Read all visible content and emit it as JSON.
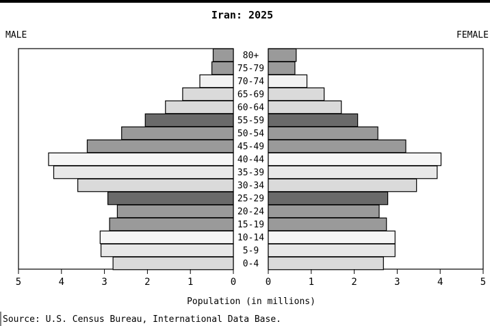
{
  "chart_data": {
    "type": "bar",
    "title": "Iran: 2025",
    "left_label": "MALE",
    "right_label": "FEMALE",
    "xlabel": "Population (in millions)",
    "source": "Source: U.S. Census Bureau, International Data Base.",
    "xlim": [
      0,
      5
    ],
    "x_ticks": [
      "5",
      "4",
      "3",
      "2",
      "1",
      "0",
      "0",
      "1",
      "2",
      "3",
      "4",
      "5"
    ],
    "categories": [
      "80+",
      "75-79",
      "70-74",
      "65-69",
      "60-64",
      "55-59",
      "50-54",
      "45-49",
      "40-44",
      "35-39",
      "30-34",
      "25-29",
      "20-24",
      "15-19",
      "10-14",
      "5-9",
      "0-4"
    ],
    "series": [
      {
        "name": "MALE",
        "values": [
          0.47,
          0.5,
          0.78,
          1.18,
          1.58,
          2.05,
          2.6,
          3.4,
          4.3,
          4.18,
          3.62,
          2.92,
          2.7,
          2.88,
          3.1,
          3.08,
          2.8
        ]
      },
      {
        "name": "FEMALE",
        "values": [
          0.65,
          0.62,
          0.9,
          1.3,
          1.7,
          2.08,
          2.55,
          3.2,
          4.02,
          3.93,
          3.45,
          2.78,
          2.58,
          2.75,
          2.95,
          2.95,
          2.68
        ]
      }
    ],
    "bar_colors": [
      "#9a9a9a",
      "#9a9a9a",
      "#f2f2f2",
      "#dadada",
      "#dadada",
      "#6a6a6a",
      "#9a9a9a",
      "#9a9a9a",
      "#f6f6f6",
      "#e8e8e8",
      "#dadada",
      "#6a6a6a",
      "#9a9a9a",
      "#9a9a9a",
      "#f6f6f6",
      "#e8e8e8",
      "#dadada"
    ]
  }
}
